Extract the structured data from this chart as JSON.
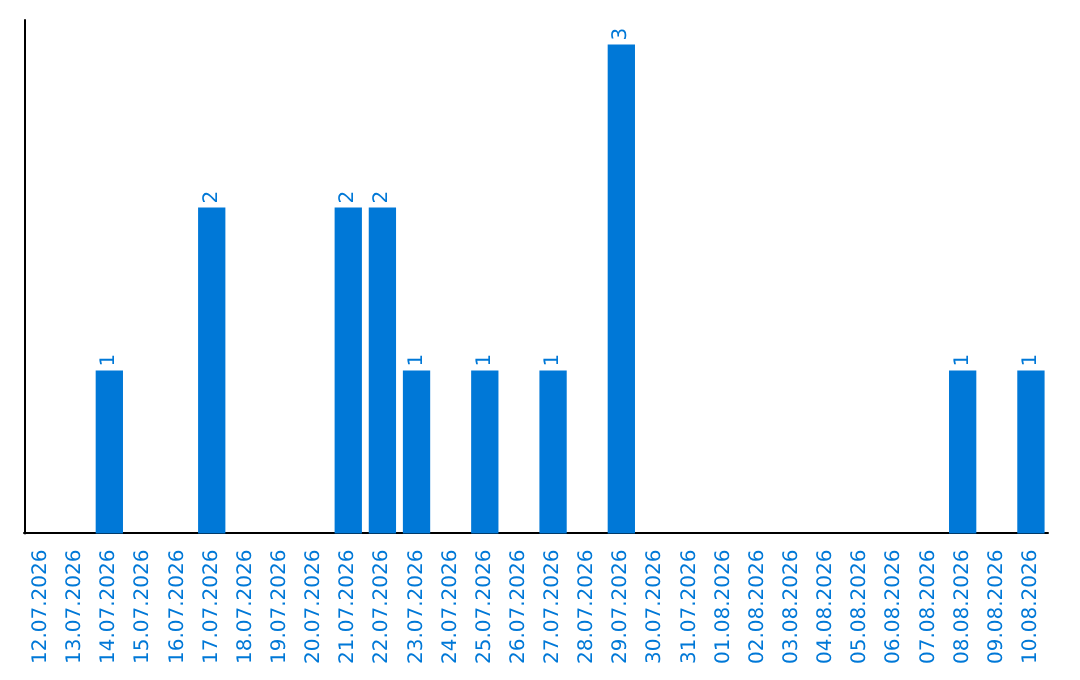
{
  "chart_data": {
    "type": "bar",
    "categories": [
      "12.07.2026",
      "13.07.2026",
      "14.07.2026",
      "15.07.2026",
      "16.07.2026",
      "17.07.2026",
      "18.07.2026",
      "19.07.2026",
      "20.07.2026",
      "21.07.2026",
      "22.07.2026",
      "23.07.2026",
      "24.07.2026",
      "25.07.2026",
      "26.07.2026",
      "27.07.2026",
      "28.07.2026",
      "29.07.2026",
      "30.07.2026",
      "31.07.2026",
      "01.08.2026",
      "02.08.2026",
      "03.08.2026",
      "04.08.2026",
      "05.08.2026",
      "06.08.2026",
      "07.08.2026",
      "08.08.2026",
      "09.08.2026",
      "10.08.2026"
    ],
    "values": [
      0,
      0,
      1,
      0,
      0,
      2,
      0,
      0,
      0,
      2,
      2,
      1,
      0,
      1,
      0,
      1,
      0,
      3,
      0,
      0,
      0,
      0,
      0,
      0,
      0,
      0,
      0,
      1,
      0,
      1
    ],
    "value_labels": [
      null,
      null,
      "1",
      null,
      null,
      "2",
      null,
      null,
      null,
      "2",
      "2",
      "1",
      null,
      "1",
      null,
      "1",
      null,
      "3",
      null,
      null,
      null,
      null,
      null,
      null,
      null,
      null,
      null,
      "1",
      null,
      "1"
    ],
    "color": "#0078d7",
    "tick_labels": "x",
    "grid": false
  }
}
